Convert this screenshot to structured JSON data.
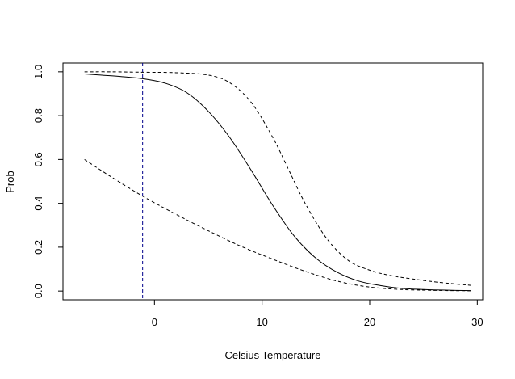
{
  "chart_data": {
    "type": "line",
    "title": "",
    "xlabel": "Celsius Temperature",
    "ylabel": "Prob",
    "xlim": [
      -8.5,
      30.5
    ],
    "ylim": [
      -0.04,
      1.04
    ],
    "x_ticks": [
      0,
      10,
      20,
      30
    ],
    "x_tick_labels": [
      "0",
      "10",
      "20",
      "30"
    ],
    "y_ticks": [
      0.0,
      0.2,
      0.4,
      0.6,
      0.8,
      1.0
    ],
    "y_tick_labels": [
      "0.0",
      "0.2",
      "0.4",
      "0.6",
      "0.8",
      "1.0"
    ],
    "grid": false,
    "legend": "none",
    "vline": {
      "x": -1.1,
      "color": "#00008B",
      "style": "dashed"
    },
    "series": [
      {
        "style": "solid",
        "color": "#000000",
        "x": [
          -6.5,
          -5,
          -3,
          -1,
          1,
          3,
          5,
          7,
          9,
          11,
          13,
          15,
          17,
          19,
          21,
          23,
          25,
          27,
          29.4
        ],
        "y": [
          0.99,
          0.985,
          0.978,
          0.968,
          0.948,
          0.905,
          0.82,
          0.7,
          0.55,
          0.39,
          0.25,
          0.15,
          0.085,
          0.045,
          0.025,
          0.012,
          0.007,
          0.004,
          0.002
        ]
      },
      {
        "style": "dashed",
        "color": "#000000",
        "x": [
          -6.5,
          -4,
          -1,
          2,
          5,
          7,
          9,
          11,
          12.5,
          14,
          16,
          18,
          20,
          22,
          24,
          26,
          28,
          29.4
        ],
        "y": [
          1.0,
          1.0,
          0.998,
          0.996,
          0.985,
          0.95,
          0.86,
          0.7,
          0.55,
          0.4,
          0.24,
          0.14,
          0.095,
          0.07,
          0.055,
          0.042,
          0.032,
          0.026
        ]
      },
      {
        "style": "dashed",
        "color": "#000000",
        "x": [
          -6.5,
          -4,
          -1,
          2,
          5,
          8,
          11,
          14,
          17,
          20,
          23,
          26,
          29.4
        ],
        "y": [
          0.6,
          0.52,
          0.43,
          0.35,
          0.275,
          0.205,
          0.145,
          0.09,
          0.045,
          0.018,
          0.007,
          0.003,
          0.001
        ]
      }
    ]
  }
}
